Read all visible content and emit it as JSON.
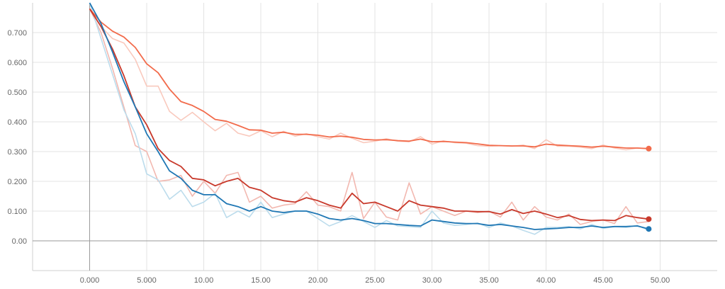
{
  "chart_data": {
    "type": "line",
    "title": "",
    "xlabel": "",
    "ylabel": "",
    "xlim": [
      -5,
      55
    ],
    "ylim": [
      -0.1,
      0.8
    ],
    "x_ticks": [
      "0.000",
      "5.000",
      "10.00",
      "15.00",
      "20.00",
      "25.00",
      "30.00",
      "35.00",
      "40.00",
      "45.00",
      "50.00"
    ],
    "y_ticks": [
      "0.00",
      "0.100",
      "0.200",
      "0.300",
      "0.400",
      "0.500",
      "0.600",
      "0.700"
    ],
    "grid": true,
    "legend": "none",
    "series": [
      {
        "color": "#f26b4b",
        "raw_color": "#f9c9bd",
        "x": [
          0,
          1,
          2,
          3,
          4,
          5,
          6,
          7,
          8,
          9,
          10,
          11,
          12,
          13,
          14,
          15,
          16,
          17,
          18,
          19,
          20,
          21,
          22,
          23,
          24,
          25,
          26,
          27,
          28,
          29,
          30,
          31,
          32,
          33,
          34,
          35,
          36,
          37,
          38,
          39,
          40,
          41,
          42,
          43,
          44,
          45,
          46,
          47,
          48,
          49
        ],
        "smoothed": [
          0.78,
          0.735,
          0.705,
          0.685,
          0.65,
          0.595,
          0.565,
          0.51,
          0.468,
          0.455,
          0.435,
          0.408,
          0.402,
          0.388,
          0.373,
          0.372,
          0.362,
          0.365,
          0.358,
          0.358,
          0.355,
          0.349,
          0.352,
          0.348,
          0.341,
          0.339,
          0.34,
          0.337,
          0.335,
          0.342,
          0.333,
          0.334,
          0.332,
          0.33,
          0.326,
          0.321,
          0.32,
          0.319,
          0.319,
          0.316,
          0.325,
          0.322,
          0.32,
          0.318,
          0.315,
          0.318,
          0.315,
          0.312,
          0.312,
          0.31
        ],
        "raw": [
          0.78,
          0.72,
          0.68,
          0.665,
          0.61,
          0.52,
          0.52,
          0.435,
          0.405,
          0.432,
          0.4,
          0.37,
          0.395,
          0.362,
          0.352,
          0.37,
          0.35,
          0.368,
          0.352,
          0.36,
          0.35,
          0.342,
          0.362,
          0.345,
          0.33,
          0.335,
          0.343,
          0.335,
          0.333,
          0.35,
          0.325,
          0.336,
          0.33,
          0.328,
          0.32,
          0.318,
          0.32,
          0.318,
          0.322,
          0.31,
          0.34,
          0.318,
          0.318,
          0.315,
          0.31,
          0.322,
          0.312,
          0.306,
          0.312,
          0.31
        ]
      },
      {
        "color": "#c8392b",
        "raw_color": "#f2b8b0",
        "x": [
          0,
          1,
          2,
          3,
          4,
          5,
          6,
          7,
          8,
          9,
          10,
          11,
          12,
          13,
          14,
          15,
          16,
          17,
          18,
          19,
          20,
          21,
          22,
          23,
          24,
          25,
          26,
          27,
          28,
          29,
          30,
          31,
          32,
          33,
          34,
          35,
          36,
          37,
          38,
          39,
          40,
          41,
          42,
          43,
          44,
          45,
          46,
          47,
          48,
          49
        ],
        "smoothed": [
          0.78,
          0.72,
          0.645,
          0.555,
          0.45,
          0.39,
          0.31,
          0.27,
          0.25,
          0.21,
          0.205,
          0.185,
          0.2,
          0.21,
          0.18,
          0.17,
          0.145,
          0.135,
          0.13,
          0.145,
          0.135,
          0.12,
          0.11,
          0.16,
          0.125,
          0.13,
          0.115,
          0.1,
          0.135,
          0.12,
          0.115,
          0.11,
          0.1,
          0.1,
          0.098,
          0.098,
          0.09,
          0.105,
          0.092,
          0.1,
          0.09,
          0.078,
          0.085,
          0.072,
          0.068,
          0.07,
          0.068,
          0.085,
          0.078,
          0.073
        ],
        "raw": [
          0.78,
          0.7,
          0.58,
          0.45,
          0.32,
          0.3,
          0.2,
          0.205,
          0.22,
          0.15,
          0.2,
          0.16,
          0.22,
          0.23,
          0.13,
          0.15,
          0.11,
          0.12,
          0.125,
          0.165,
          0.12,
          0.115,
          0.1,
          0.23,
          0.075,
          0.13,
          0.08,
          0.07,
          0.195,
          0.09,
          0.115,
          0.1,
          0.085,
          0.1,
          0.095,
          0.1,
          0.08,
          0.13,
          0.07,
          0.115,
          0.08,
          0.07,
          0.09,
          0.055,
          0.065,
          0.07,
          0.058,
          0.115,
          0.06,
          0.065
        ]
      },
      {
        "color": "#1f77b4",
        "raw_color": "#bcdcec",
        "x": [
          0,
          1,
          2,
          3,
          4,
          5,
          6,
          7,
          8,
          9,
          10,
          11,
          12,
          13,
          14,
          15,
          16,
          17,
          18,
          19,
          20,
          21,
          22,
          23,
          24,
          25,
          26,
          27,
          28,
          29,
          30,
          31,
          32,
          33,
          34,
          35,
          36,
          37,
          38,
          39,
          40,
          41,
          42,
          43,
          44,
          45,
          46,
          47,
          48,
          49
        ],
        "smoothed": [
          0.8,
          0.73,
          0.635,
          0.535,
          0.45,
          0.36,
          0.3,
          0.235,
          0.21,
          0.17,
          0.155,
          0.155,
          0.125,
          0.115,
          0.1,
          0.115,
          0.1,
          0.095,
          0.1,
          0.1,
          0.09,
          0.075,
          0.07,
          0.075,
          0.068,
          0.058,
          0.058,
          0.055,
          0.052,
          0.05,
          0.07,
          0.065,
          0.06,
          0.058,
          0.058,
          0.052,
          0.055,
          0.05,
          0.045,
          0.038,
          0.04,
          0.042,
          0.045,
          0.045,
          0.05,
          0.045,
          0.048,
          0.048,
          0.05,
          0.04
        ],
        "raw": [
          0.8,
          0.68,
          0.56,
          0.44,
          0.36,
          0.225,
          0.205,
          0.14,
          0.17,
          0.115,
          0.13,
          0.16,
          0.078,
          0.1,
          0.08,
          0.13,
          0.078,
          0.09,
          0.1,
          0.1,
          0.075,
          0.05,
          0.065,
          0.085,
          0.065,
          0.045,
          0.068,
          0.05,
          0.048,
          0.045,
          0.1,
          0.06,
          0.052,
          0.055,
          0.06,
          0.045,
          0.06,
          0.05,
          0.035,
          0.022,
          0.045,
          0.045,
          0.048,
          0.04,
          0.055,
          0.042,
          0.048,
          0.045,
          0.052,
          0.035
        ]
      }
    ]
  }
}
